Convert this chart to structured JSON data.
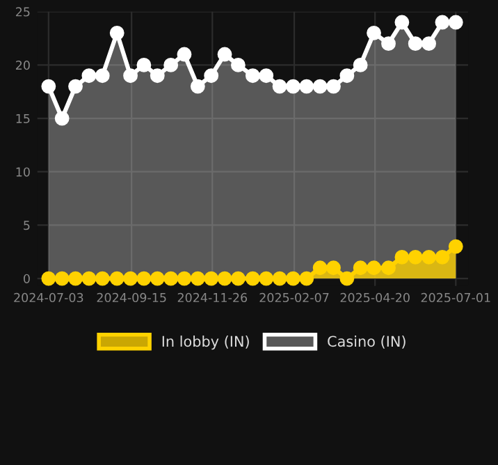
{
  "chart_data": {
    "type": "area",
    "x": [
      "2024-07-03",
      "2024-07-15",
      "2024-07-27",
      "2024-08-08",
      "2024-08-20",
      "2024-09-02",
      "2024-09-14",
      "2024-09-26",
      "2024-10-08",
      "2024-10-20",
      "2024-11-01",
      "2024-11-13",
      "2024-11-25",
      "2024-12-07",
      "2024-12-19",
      "2025-01-01",
      "2025-01-13",
      "2025-01-25",
      "2025-02-06",
      "2025-02-18",
      "2025-03-02",
      "2025-03-14",
      "2025-03-26",
      "2025-04-07",
      "2025-04-19",
      "2025-05-02",
      "2025-05-14",
      "2025-05-26",
      "2025-06-07",
      "2025-06-19",
      "2025-07-01"
    ],
    "series": [
      {
        "name": "In lobby (IN)",
        "color": "#ffd200",
        "values": [
          0,
          0,
          0,
          0,
          0,
          0,
          0,
          0,
          0,
          0,
          0,
          0,
          0,
          0,
          0,
          0,
          0,
          0,
          0,
          0,
          1,
          1,
          0,
          1,
          1,
          1,
          2,
          2,
          2,
          2,
          3
        ]
      },
      {
        "name": "Casino (IN)",
        "color": "#ffffff",
        "values": [
          18,
          15,
          18,
          19,
          19,
          23,
          19,
          20,
          19,
          20,
          21,
          18,
          19,
          21,
          20,
          19,
          19,
          18,
          18,
          18,
          18,
          18,
          19,
          20,
          23,
          22,
          24,
          22,
          22,
          24,
          24
        ]
      }
    ],
    "xlim": [
      "2024-06-23",
      "2025-07-12"
    ],
    "xticks": [
      "2024-07-03",
      "2024-09-15",
      "2024-11-26",
      "2025-02-07",
      "2025-04-20",
      "2025-07-01"
    ],
    "ylim": [
      -0.7,
      25
    ],
    "yticks": [
      0,
      5,
      10,
      15,
      20,
      25
    ],
    "grid": true,
    "legend": "bottom",
    "marker": "circle",
    "line_style": "solid"
  }
}
